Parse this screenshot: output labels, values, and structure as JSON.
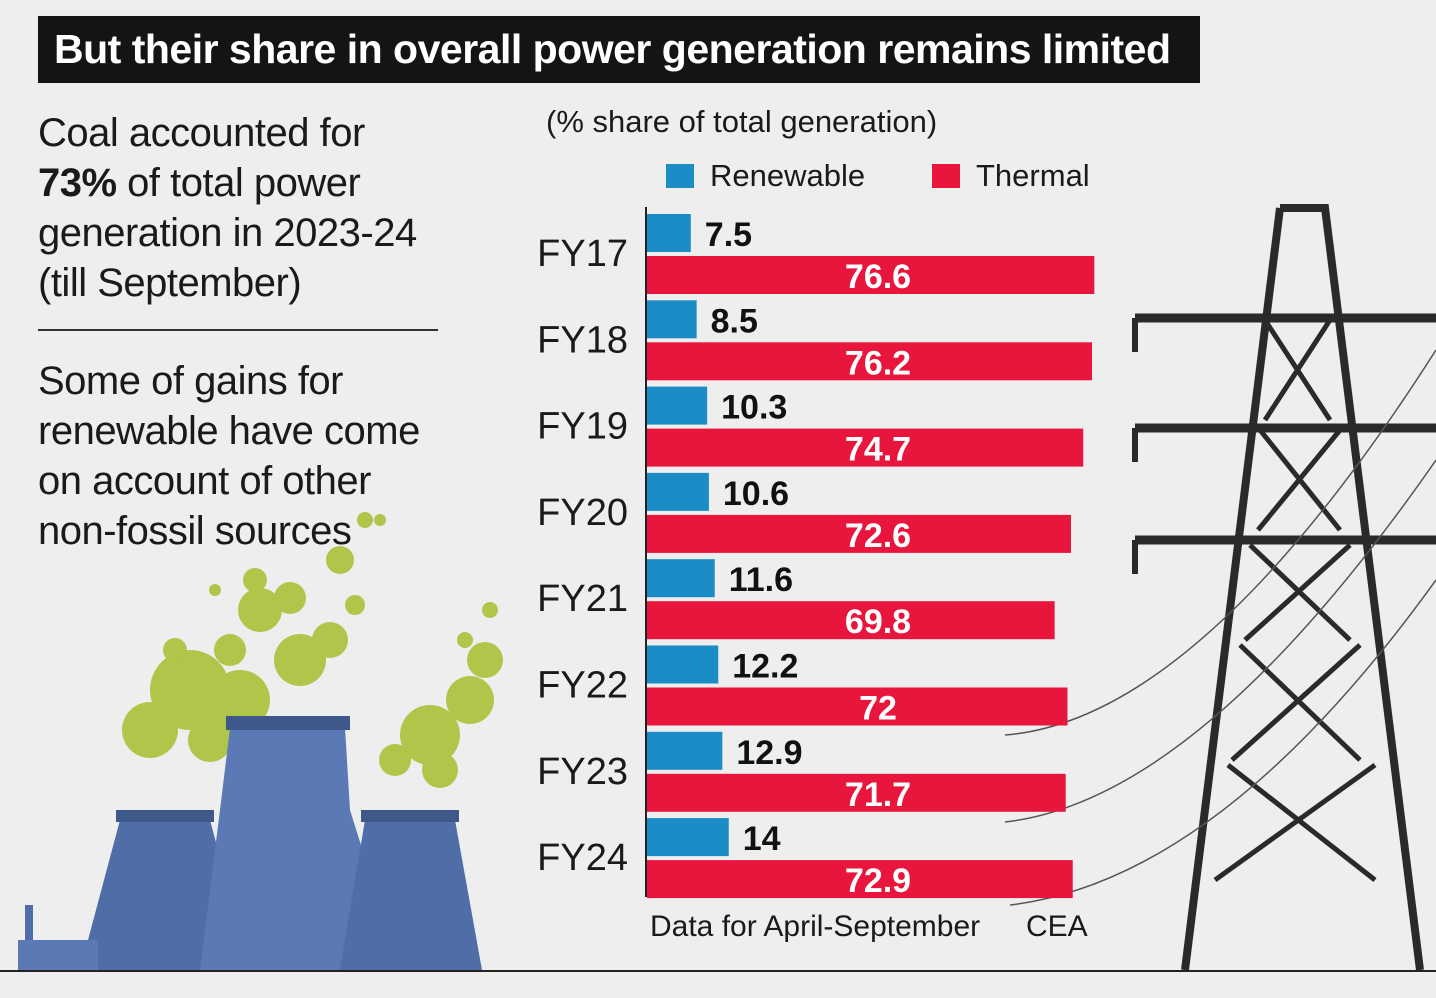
{
  "title": "But their share in overall power generation remains limited",
  "note1": {
    "before": "Coal accounted for ",
    "highlight": "73%",
    "after": " of total power generation in 2023-24 (till September)"
  },
  "note2": "Some of gains for renewable have come on account of other non-fossil sources",
  "unit_label": "(% share of total generation)",
  "legend": {
    "renewable": {
      "label": "Renewable",
      "color": "#1b8cc6"
    },
    "thermal": {
      "label": "Thermal",
      "color": "#e8163c"
    }
  },
  "footer": {
    "note": "Data for April-September",
    "source": "CEA"
  },
  "chart_data": {
    "type": "bar",
    "orientation": "horizontal",
    "categories": [
      "FY17",
      "FY18",
      "FY19",
      "FY20",
      "FY21",
      "FY22",
      "FY23",
      "FY24"
    ],
    "series": [
      {
        "name": "Renewable",
        "color": "#1b8cc6",
        "values": [
          7.5,
          8.5,
          10.3,
          10.6,
          11.6,
          12.2,
          12.9,
          14
        ]
      },
      {
        "name": "Thermal",
        "color": "#e8163c",
        "values": [
          76.6,
          76.2,
          74.7,
          72.6,
          69.8,
          72,
          71.7,
          72.9
        ]
      }
    ],
    "value_labels": {
      "Renewable": [
        "7.5",
        "8.5",
        "10.3",
        "10.6",
        "11.6",
        "12.2",
        "12.9",
        "14"
      ],
      "Thermal": [
        "76.6",
        "76.2",
        "74.7",
        "72.6",
        "69.8",
        "72",
        "71.7",
        "72.9"
      ]
    },
    "xlim": [
      0,
      80
    ],
    "grid": false,
    "legend_position": "top"
  }
}
